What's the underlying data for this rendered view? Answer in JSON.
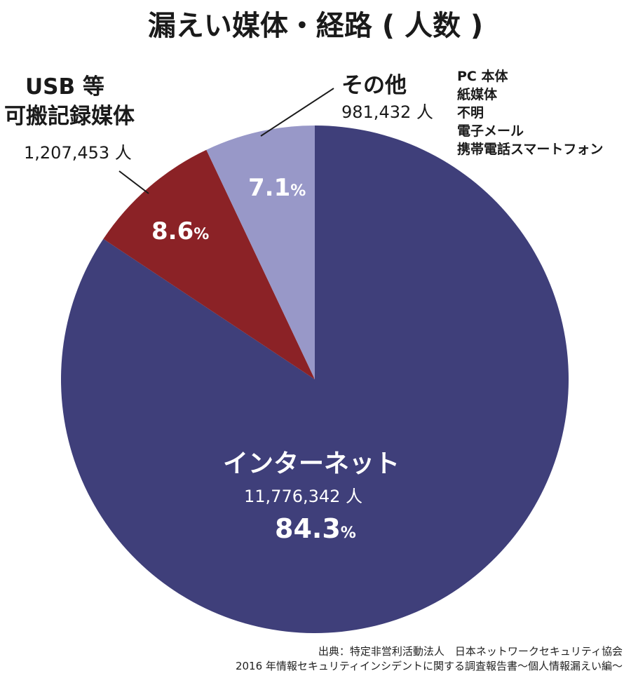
{
  "title": "漏えい媒体・経路 ( 人数 )",
  "colors": {
    "internet": "#3f3f7a",
    "usb": "#8b2226",
    "other": "#9898c8",
    "line": "#1a1a1a"
  },
  "chart_data": {
    "type": "pie",
    "title": "漏えい媒体・経路 ( 人数 )",
    "unit": "人",
    "slices": [
      {
        "name": "インターネット",
        "people": "11,776,342 人",
        "value": 11776342,
        "percent": 84.3
      },
      {
        "name_line1": "USB 等",
        "name_line2": "可搬記録媒体",
        "people": "1,207,453 人",
        "value": 1207453,
        "percent": 8.6
      },
      {
        "name": "その他",
        "people": "981,432 人",
        "value": 981432,
        "percent": 7.1,
        "breakdown": [
          "PC 本体",
          "紙媒体",
          "不明",
          "電子メール",
          "携帯電話スマートフォン"
        ]
      }
    ]
  },
  "labels": {
    "internet_pct": "84.3",
    "usb_pct": "8.6",
    "other_pct": "7.1",
    "pct_unit": "%"
  },
  "source": {
    "line1": "出典：特定非営利活動法人　日本ネットワークセキュリティ協会",
    "line2": "2016 年情報セキュリティインシデントに関する調査報告書〜個人情報漏えい編〜"
  }
}
